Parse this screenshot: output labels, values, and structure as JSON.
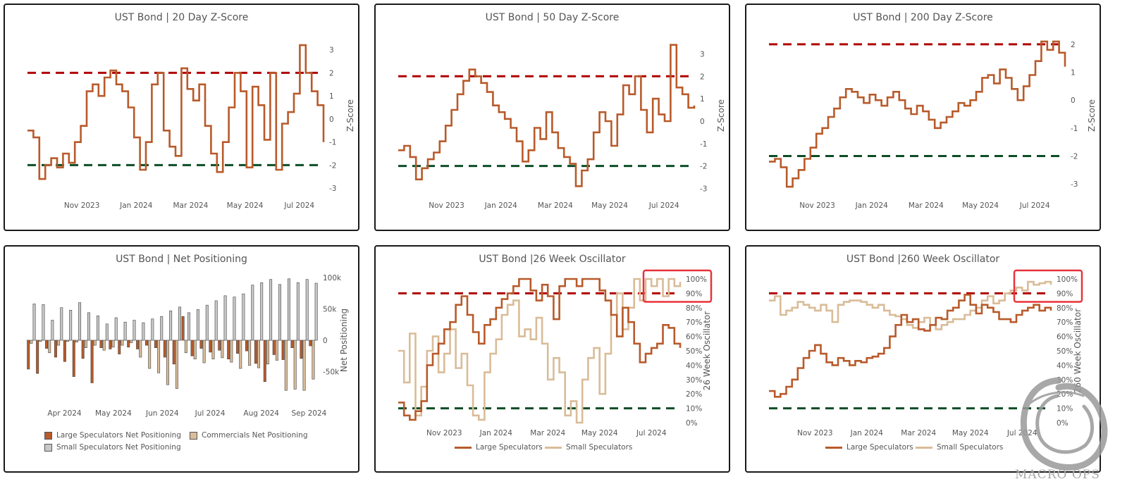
{
  "colors": {
    "large": "#b85a2a",
    "small_spec": "#c8c8c8",
    "commercials": "#d9bc98",
    "small_line": "#d9bc98",
    "upper": "#b00000",
    "lower": "#0d4d26",
    "callout": "#e8333a"
  },
  "panels": [
    {
      "id": "z20",
      "title": "UST Bond | 20 Day Z-Score",
      "chart_data": {
        "type": "line",
        "title": "UST Bond | 20 Day Z-Score",
        "ylabel": "Z-Score",
        "ylim": [
          -3.3,
          3.6
        ],
        "yticks": [
          3,
          2,
          1,
          0,
          -1,
          -2,
          -3
        ],
        "ytick_labels": [
          "3",
          "2",
          "1",
          "0",
          "-1",
          "-2",
          "-3"
        ],
        "xlim": [
          0,
          49
        ],
        "x_tick_positions": [
          9,
          18,
          27,
          36,
          45
        ],
        "x_tick_labels": [
          "Nov 2023",
          "Jan 2024",
          "Mar 2024",
          "May 2024",
          "Jul 2024"
        ],
        "hlines": [
          2,
          -2
        ],
        "series": [
          {
            "name": "20 Day Z-Score",
            "values": [
              -0.5,
              -0.8,
              -2.6,
              -2.0,
              -1.7,
              -2.1,
              -1.5,
              -1.9,
              -1.0,
              -0.3,
              1.2,
              1.5,
              1.0,
              1.8,
              2.1,
              1.5,
              1.2,
              0.5,
              -0.8,
              -2.2,
              -1.0,
              1.5,
              2.0,
              -0.5,
              -1.2,
              -1.6,
              2.2,
              1.3,
              0.8,
              1.5,
              -0.3,
              -1.5,
              -2.3,
              -1.0,
              0.5,
              2.0,
              1.2,
              -2.1,
              1.4,
              0.6,
              -0.9,
              2.0,
              -2.2,
              -0.2,
              0.3,
              1.1,
              3.2,
              2.0,
              1.2,
              0.6,
              -1.0
            ]
          }
        ]
      }
    },
    {
      "id": "z50",
      "title": "UST Bond | 50 Day Z-Score",
      "chart_data": {
        "type": "line",
        "title": "UST Bond | 50 Day Z-Score",
        "ylabel": "Z-Score",
        "ylim": [
          -3.3,
          3.8
        ],
        "yticks": [
          3,
          2,
          1,
          0,
          -1,
          -2,
          -3
        ],
        "ytick_labels": [
          "3",
          "2",
          "1",
          "0",
          "-1",
          "-2",
          "-3"
        ],
        "xlim": [
          0,
          49
        ],
        "x_tick_positions": [
          8,
          17,
          26,
          35,
          44
        ],
        "x_tick_labels": [
          "Nov 2023",
          "Jan 2024",
          "Mar 2024",
          "May 2024",
          "Jul 2024"
        ],
        "hlines": [
          2,
          -2
        ],
        "series": [
          {
            "name": "50 Day Z-Score",
            "values": [
              -1.3,
              -1.1,
              -1.6,
              -2.6,
              -2.1,
              -1.7,
              -1.4,
              -0.9,
              -0.2,
              0.5,
              1.2,
              1.8,
              2.3,
              2.0,
              1.7,
              1.3,
              0.7,
              0.4,
              0.1,
              -0.3,
              -0.9,
              -1.8,
              -1.3,
              -0.3,
              -0.8,
              0.4,
              -0.5,
              -1.2,
              -1.6,
              -1.9,
              -2.9,
              -2.2,
              -1.7,
              -0.5,
              0.4,
              0.0,
              -1.1,
              0.3,
              1.6,
              1.2,
              2.0,
              0.5,
              -0.5,
              1.0,
              0.3,
              0.0,
              3.4,
              1.5,
              1.2,
              0.6,
              0.7
            ]
          }
        ]
      }
    },
    {
      "id": "z200",
      "title": "UST Bond | 200 Day Z-Score",
      "chart_data": {
        "type": "line",
        "title": "UST Bond | 200 Day Z-Score",
        "ylabel": "Z-Score",
        "ylim": [
          -3.4,
          2.3
        ],
        "yticks": [
          2,
          1,
          0,
          -1,
          -2,
          -3
        ],
        "ytick_labels": [
          "2",
          "1",
          "0",
          "-1",
          "-2",
          "-3"
        ],
        "xlim": [
          0,
          49
        ],
        "x_tick_positions": [
          8,
          17,
          26,
          35,
          44
        ],
        "x_tick_labels": [
          "Nov 2023",
          "Jan 2024",
          "Mar 2024",
          "May 2024",
          "Jul 2024"
        ],
        "hlines": [
          2,
          -2
        ],
        "series": [
          {
            "name": "200 Day Z-Score",
            "values": [
              -2.2,
              -2.1,
              -2.4,
              -3.1,
              -2.8,
              -2.5,
              -2.1,
              -1.7,
              -1.2,
              -1.0,
              -0.6,
              -0.3,
              0.1,
              0.4,
              0.3,
              0.1,
              -0.1,
              0.2,
              0.0,
              -0.2,
              0.1,
              0.3,
              0.0,
              -0.3,
              -0.5,
              -0.2,
              -0.4,
              -0.7,
              -1.0,
              -0.8,
              -0.6,
              -0.4,
              -0.1,
              -0.2,
              0.0,
              0.3,
              0.8,
              0.9,
              0.6,
              1.1,
              0.8,
              0.4,
              0.0,
              0.5,
              0.9,
              1.4,
              2.1,
              1.8,
              2.1,
              1.7,
              1.2
            ]
          }
        ]
      }
    },
    {
      "id": "netpos",
      "title": "UST Bond | Net Positioning",
      "chart_data": {
        "type": "bar",
        "title": "UST Bond | Net Positioning",
        "ylabel": "Net Positioning",
        "ylim": [
          -100000,
          100000
        ],
        "yticks": [
          100000,
          50000,
          0,
          -50000
        ],
        "ytick_labels": [
          "100k",
          "50k",
          "0",
          "-50k"
        ],
        "xlim": [
          0,
          25
        ],
        "x_tick_positions": [
          3.3,
          7.5,
          11.7,
          15.8,
          20.2,
          24.3
        ],
        "x_tick_labels": [
          "Apr 2024",
          "May 2024",
          "Jun 2024",
          "Jul 2024",
          "Aug 2024",
          "Sep 2024"
        ],
        "legend": [
          "Large Speculators Net Positioning",
          "Commercials Net Positioning",
          "Small Speculators Net Positioning"
        ],
        "series": [
          {
            "name": "Large Speculators Net Positioning",
            "values": [
              -46000,
              -53000,
              -13000,
              -27000,
              -34000,
              -58000,
              -29000,
              -68000,
              -12000,
              -14000,
              -22000,
              -11000,
              -14000,
              -8000,
              -12000,
              -27000,
              -38000,
              38000,
              -25000,
              -13000,
              -19000,
              -16000,
              -30000,
              -21000,
              -17000,
              -37000,
              -66000,
              -23000,
              -31000,
              -12000,
              -29000,
              -9000
            ]
          },
          {
            "name": "Commercials Net Positioning",
            "values": [
              -5000,
              -2000,
              -20000,
              -8000,
              -2000,
              -3000,
              -12000,
              -8000,
              -16000,
              -11000,
              -8000,
              -4000,
              -27000,
              -45000,
              -52000,
              -71000,
              -77000,
              -20000,
              -30000,
              -36000,
              -30000,
              -28000,
              -35000,
              -45000,
              -40000,
              -44000,
              -38000,
              -32000,
              -80000,
              -78000,
              -80000,
              -62000
            ]
          },
          {
            "name": "Small Speculators Net Positioning",
            "values": [
              58000,
              57000,
              32000,
              52000,
              48000,
              60000,
              44000,
              39000,
              26000,
              36000,
              29000,
              32000,
              28000,
              34000,
              38000,
              47000,
              53000,
              44000,
              49000,
              56000,
              63000,
              71000,
              69000,
              74000,
              88000,
              92000,
              97000,
              89000,
              98000,
              92000,
              97000,
              91000
            ]
          }
        ]
      }
    },
    {
      "id": "osc26",
      "title": "UST Bond |26 Week Oscillator",
      "chart_data": {
        "type": "line",
        "title": "UST Bond |26 Week Oscillator",
        "ylabel": "26 Week Oscillator",
        "ylim": [
          0,
          100
        ],
        "yticks": [
          100,
          90,
          80,
          70,
          60,
          50,
          40,
          30,
          20,
          10,
          0
        ],
        "ytick_labels": [
          "100%",
          "90%",
          "80%",
          "70%",
          "60%",
          "50%",
          "40%",
          "30%",
          "20%",
          "10%",
          "0%"
        ],
        "xlim": [
          0,
          49
        ],
        "x_tick_positions": [
          8,
          17,
          26,
          35,
          44
        ],
        "x_tick_labels": [
          "Nov 2023",
          "Jan 2024",
          "Mar 2024",
          "May 2024",
          "Jul 2024"
        ],
        "hlines": [
          90,
          10
        ],
        "legend": [
          "Large Speculators",
          "Small Speculators"
        ],
        "series": [
          {
            "name": "Large Speculators",
            "values": [
              14,
              5,
              2,
              8,
              15,
              40,
              48,
              55,
              65,
              70,
              82,
              88,
              75,
              63,
              55,
              68,
              72,
              80,
              86,
              90,
              95,
              100,
              100,
              92,
              85,
              96,
              88,
              72,
              95,
              100,
              100,
              95,
              100,
              100,
              100,
              92,
              85,
              75,
              60,
              80,
              70,
              55,
              42,
              48,
              52,
              55,
              68,
              66,
              55,
              52
            ]
          },
          {
            "name": "Small Speculators",
            "values": [
              50,
              28,
              62,
              5,
              25,
              50,
              60,
              35,
              48,
              65,
              38,
              48,
              26,
              5,
              2,
              35,
              48,
              58,
              75,
              82,
              85,
              60,
              65,
              58,
              73,
              55,
              30,
              45,
              35,
              5,
              15,
              0,
              30,
              45,
              52,
              20,
              48,
              75,
              90,
              65,
              80,
              100,
              85,
              100,
              95,
              100,
              88,
              100,
              95,
              98
            ]
          }
        ]
      }
    },
    {
      "id": "osc260",
      "title": "UST Bond |260 Week Oscillator",
      "chart_data": {
        "type": "line",
        "title": "UST Bond |260 Week Oscillator",
        "ylabel": "260 Week Oscillator",
        "ylim": [
          0,
          100
        ],
        "yticks": [
          100,
          90,
          80,
          70,
          60,
          50,
          40,
          30,
          20,
          10,
          0
        ],
        "ytick_labels": [
          "100%",
          "90%",
          "80%",
          "70%",
          "60%",
          "50%",
          "40%",
          "30%",
          "20%",
          "10%",
          "0%"
        ],
        "xlim": [
          0,
          49
        ],
        "x_tick_positions": [
          8,
          17,
          26,
          35,
          44
        ],
        "x_tick_labels": [
          "Nov 2023",
          "Jan 2024",
          "Mar 2024",
          "May 2024",
          "Jul 2024"
        ],
        "hlines": [
          90,
          10
        ],
        "legend": [
          "Large Speculators",
          "Small Speculators"
        ],
        "series": [
          {
            "name": "Large Speculators",
            "values": [
              22,
              18,
              20,
              25,
              30,
              38,
              45,
              50,
              54,
              48,
              42,
              40,
              45,
              43,
              40,
              43,
              42,
              45,
              46,
              48,
              52,
              60,
              68,
              75,
              70,
              72,
              65,
              64,
              68,
              73,
              72,
              78,
              80,
              85,
              89,
              82,
              76,
              82,
              80,
              77,
              72,
              72,
              70,
              75,
              78,
              80,
              82,
              78,
              80,
              78
            ]
          },
          {
            "name": "Small Speculators",
            "values": [
              85,
              88,
              75,
              78,
              80,
              84,
              82,
              80,
              78,
              82,
              78,
              70,
              82,
              84,
              85,
              85,
              84,
              82,
              80,
              82,
              78,
              75,
              74,
              72,
              68,
              66,
              70,
              73,
              68,
              65,
              68,
              70,
              72,
              72,
              75,
              78,
              80,
              85,
              88,
              83,
              85,
              90,
              92,
              94,
              92,
              98,
              96,
              97,
              98,
              96
            ]
          }
        ]
      }
    }
  ],
  "watermark": {
    "text": "MACRO OPS"
  }
}
